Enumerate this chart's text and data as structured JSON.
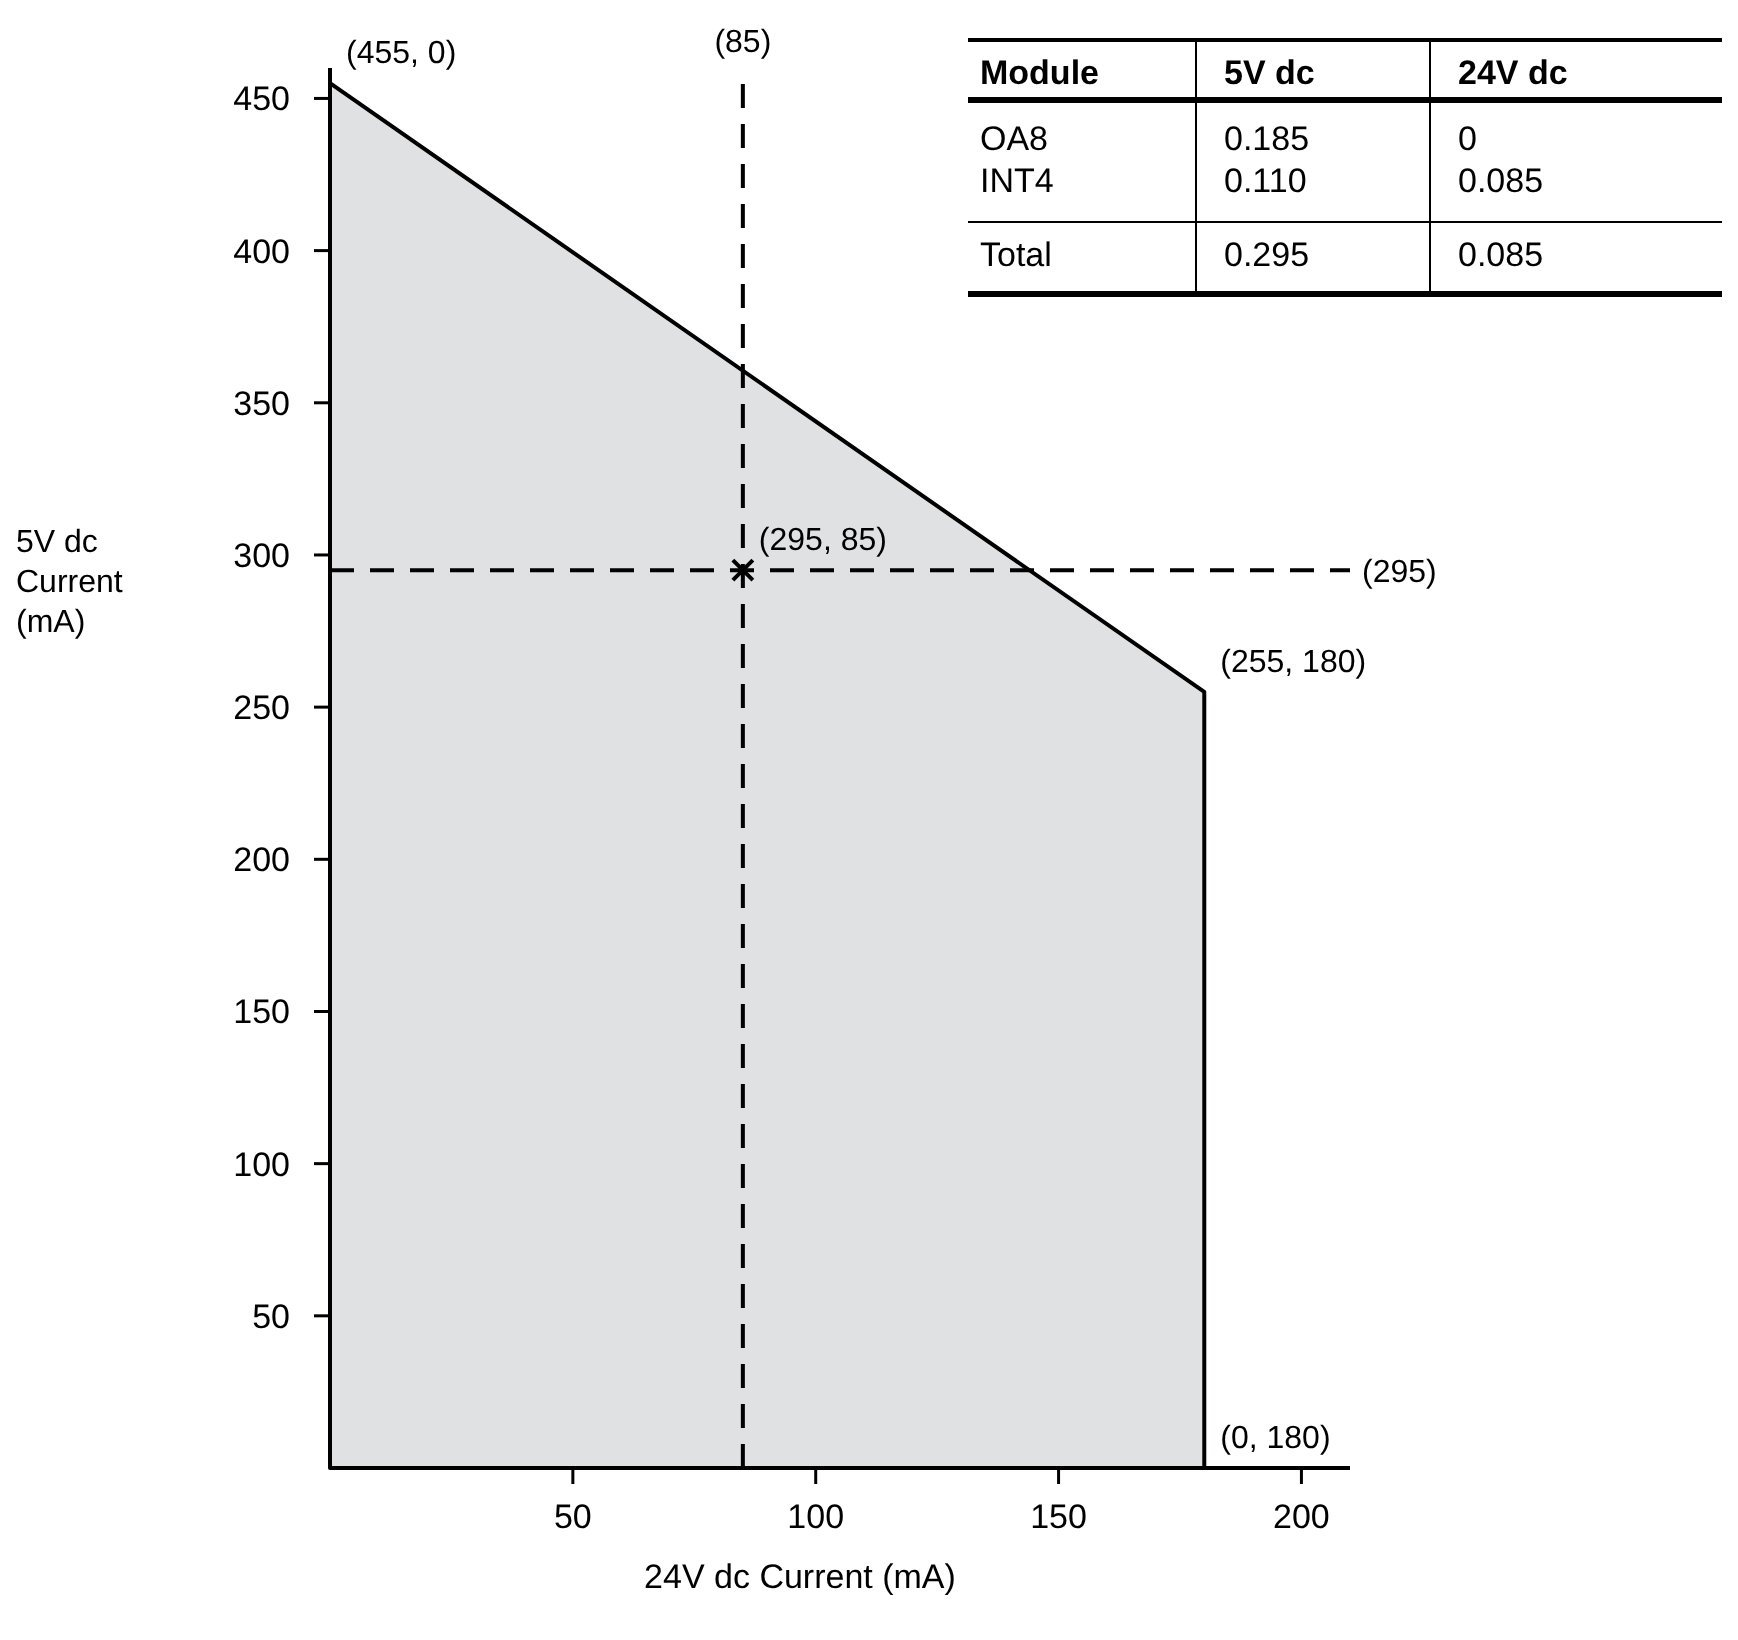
{
  "chart_data": [
    {
      "type": "area",
      "xlabel": "24V dc Current (mA)",
      "ylabel": "5V dc Current (mA)",
      "xlim": [
        0,
        210
      ],
      "ylim": [
        0,
        460
      ],
      "xticks": [
        50,
        100,
        150,
        200
      ],
      "yticks": [
        50,
        100,
        150,
        200,
        250,
        300,
        350,
        400,
        450
      ],
      "grid": false,
      "series": [
        {
          "type": "area",
          "color": "#e0e1e3",
          "x": [
            0,
            180,
            180
          ],
          "values": [
            455,
            255,
            0
          ]
        },
        {
          "type": "scatter",
          "color": "#000000",
          "marker": "cross",
          "x": [
            85
          ],
          "values": [
            295
          ]
        }
      ],
      "ref_lines": [
        {
          "axis": "x",
          "value": 85,
          "label": "(85)",
          "line_style": "dashed",
          "color": "#000000"
        },
        {
          "axis": "y",
          "value": 295,
          "label": "(295)",
          "line_style": "dashed",
          "color": "#000000"
        }
      ],
      "annotations": [
        {
          "text": "(455, 0)",
          "x": 0,
          "y": 455
        },
        {
          "text": "(255, 180)",
          "x": 180,
          "y": 255
        },
        {
          "text": "(0, 180)",
          "x": 180,
          "y": 0
        },
        {
          "text": "(295, 85)",
          "x": 85,
          "y": 295
        }
      ]
    },
    {
      "type": "other",
      "annotations": [
        "Module",
        "5V dc",
        "24V dc",
        "OA8",
        "0.185",
        "0",
        "INT4",
        "0.110",
        "0.085",
        "Total",
        "0.295",
        "0.085"
      ]
    }
  ]
}
